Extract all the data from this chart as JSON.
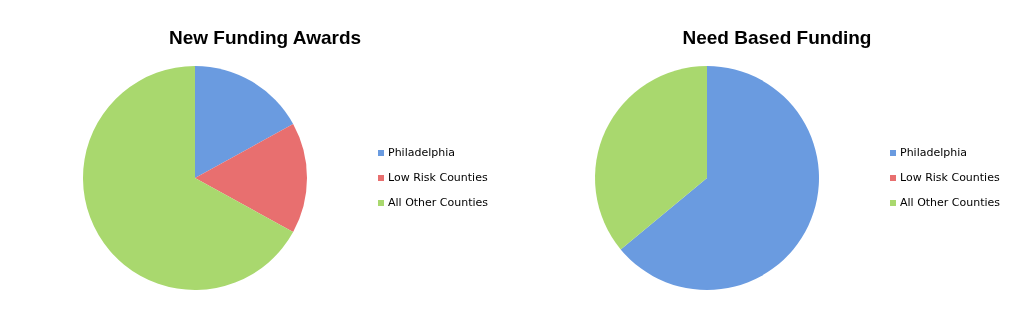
{
  "chart_data": [
    {
      "type": "pie",
      "title": "New Funding Awards",
      "categories": [
        "Philadelphia",
        "Low Risk Counties",
        "All Other Counties"
      ],
      "values": [
        17,
        16,
        67
      ],
      "colors": [
        "#6a9be0",
        "#e86f6f",
        "#a9d86e"
      ],
      "legend": "right"
    },
    {
      "type": "pie",
      "title": "Need Based Funding",
      "categories": [
        "Philadelphia",
        "Low Risk Counties",
        "All Other Counties"
      ],
      "values": [
        64,
        0,
        36
      ],
      "colors": [
        "#6a9be0",
        "#e86f6f",
        "#a9d86e"
      ],
      "legend": "right"
    }
  ]
}
